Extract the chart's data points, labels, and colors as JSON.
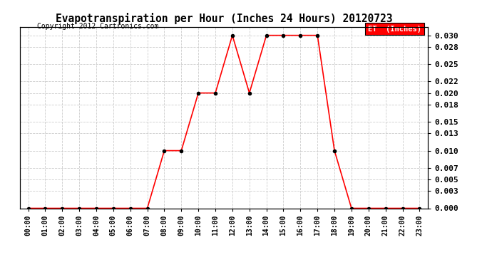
{
  "title": "Evapotranspiration per Hour (Inches 24 Hours) 20120723",
  "copyright": "Copyright 2012 Cartronics.com",
  "legend_label": "ET  (Inches)",
  "hours": [
    "00:00",
    "01:00",
    "02:00",
    "03:00",
    "04:00",
    "05:00",
    "06:00",
    "07:00",
    "08:00",
    "09:00",
    "10:00",
    "11:00",
    "12:00",
    "13:00",
    "14:00",
    "15:00",
    "16:00",
    "17:00",
    "18:00",
    "19:00",
    "20:00",
    "21:00",
    "22:00",
    "23:00"
  ],
  "values": [
    0.0,
    0.0,
    0.0,
    0.0,
    0.0,
    0.0,
    0.0,
    0.0,
    0.01,
    0.01,
    0.02,
    0.02,
    0.03,
    0.02,
    0.03,
    0.03,
    0.03,
    0.03,
    0.01,
    0.0,
    0.0,
    0.0,
    0.0,
    0.0
  ],
  "line_color": "red",
  "marker_color": "black",
  "legend_bg": "red",
  "legend_fg": "white",
  "grid_color": "#cccccc",
  "bg_color": "white",
  "ylim": [
    0.0,
    0.0315
  ],
  "yticks": [
    0.0,
    0.003,
    0.005,
    0.007,
    0.01,
    0.013,
    0.015,
    0.018,
    0.02,
    0.022,
    0.025,
    0.028,
    0.03
  ]
}
